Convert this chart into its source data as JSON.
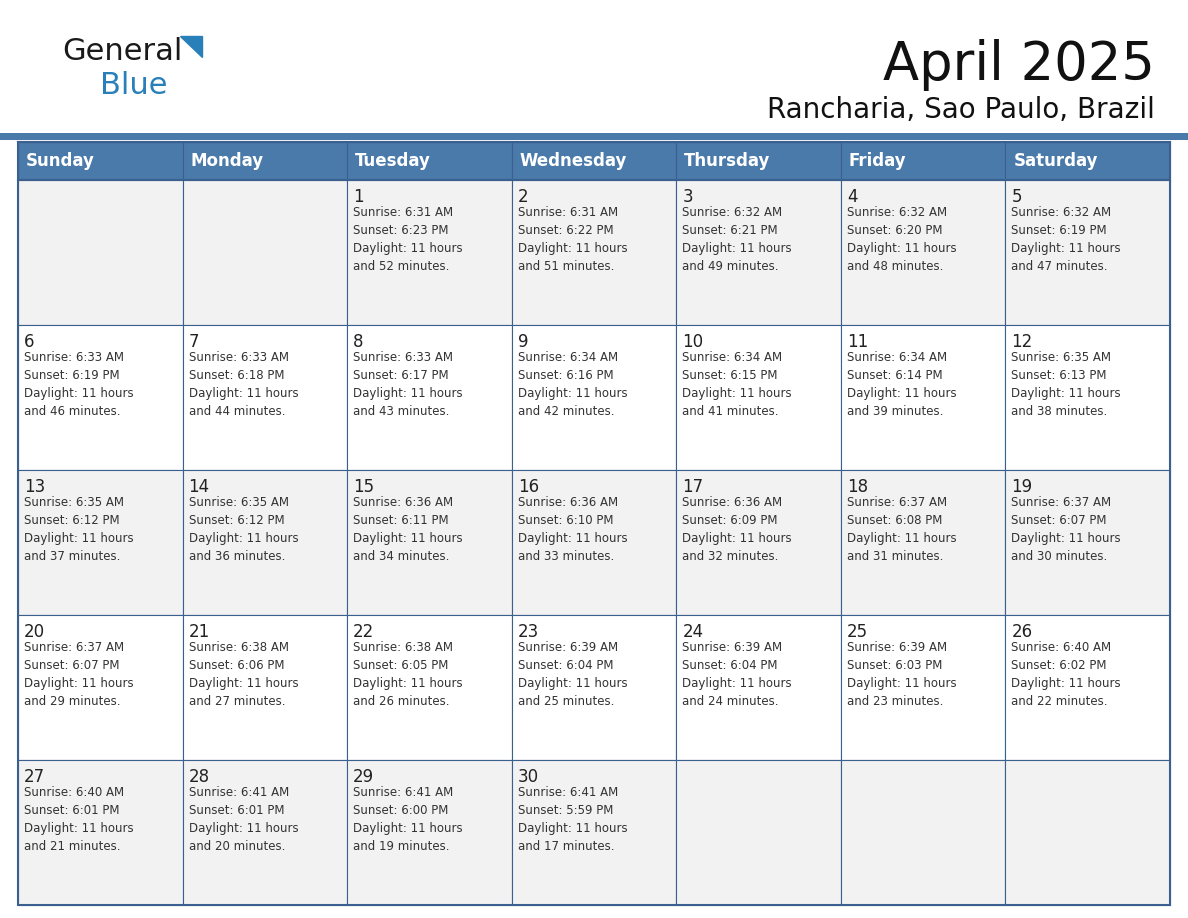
{
  "title": "April 2025",
  "subtitle": "Rancharia, Sao Paulo, Brazil",
  "header_bg": "#4a7aaa",
  "header_text_color": "#ffffff",
  "border_color": "#3a6090",
  "row_bg_light": "#f2f2f2",
  "row_bg_white": "#ffffff",
  "text_color": "#222222",
  "info_color": "#333333",
  "days_of_week": [
    "Sunday",
    "Monday",
    "Tuesday",
    "Wednesday",
    "Thursday",
    "Friday",
    "Saturday"
  ],
  "weeks": [
    [
      {
        "day": "",
        "info": ""
      },
      {
        "day": "",
        "info": ""
      },
      {
        "day": "1",
        "info": "Sunrise: 6:31 AM\nSunset: 6:23 PM\nDaylight: 11 hours\nand 52 minutes."
      },
      {
        "day": "2",
        "info": "Sunrise: 6:31 AM\nSunset: 6:22 PM\nDaylight: 11 hours\nand 51 minutes."
      },
      {
        "day": "3",
        "info": "Sunrise: 6:32 AM\nSunset: 6:21 PM\nDaylight: 11 hours\nand 49 minutes."
      },
      {
        "day": "4",
        "info": "Sunrise: 6:32 AM\nSunset: 6:20 PM\nDaylight: 11 hours\nand 48 minutes."
      },
      {
        "day": "5",
        "info": "Sunrise: 6:32 AM\nSunset: 6:19 PM\nDaylight: 11 hours\nand 47 minutes."
      }
    ],
    [
      {
        "day": "6",
        "info": "Sunrise: 6:33 AM\nSunset: 6:19 PM\nDaylight: 11 hours\nand 46 minutes."
      },
      {
        "day": "7",
        "info": "Sunrise: 6:33 AM\nSunset: 6:18 PM\nDaylight: 11 hours\nand 44 minutes."
      },
      {
        "day": "8",
        "info": "Sunrise: 6:33 AM\nSunset: 6:17 PM\nDaylight: 11 hours\nand 43 minutes."
      },
      {
        "day": "9",
        "info": "Sunrise: 6:34 AM\nSunset: 6:16 PM\nDaylight: 11 hours\nand 42 minutes."
      },
      {
        "day": "10",
        "info": "Sunrise: 6:34 AM\nSunset: 6:15 PM\nDaylight: 11 hours\nand 41 minutes."
      },
      {
        "day": "11",
        "info": "Sunrise: 6:34 AM\nSunset: 6:14 PM\nDaylight: 11 hours\nand 39 minutes."
      },
      {
        "day": "12",
        "info": "Sunrise: 6:35 AM\nSunset: 6:13 PM\nDaylight: 11 hours\nand 38 minutes."
      }
    ],
    [
      {
        "day": "13",
        "info": "Sunrise: 6:35 AM\nSunset: 6:12 PM\nDaylight: 11 hours\nand 37 minutes."
      },
      {
        "day": "14",
        "info": "Sunrise: 6:35 AM\nSunset: 6:12 PM\nDaylight: 11 hours\nand 36 minutes."
      },
      {
        "day": "15",
        "info": "Sunrise: 6:36 AM\nSunset: 6:11 PM\nDaylight: 11 hours\nand 34 minutes."
      },
      {
        "day": "16",
        "info": "Sunrise: 6:36 AM\nSunset: 6:10 PM\nDaylight: 11 hours\nand 33 minutes."
      },
      {
        "day": "17",
        "info": "Sunrise: 6:36 AM\nSunset: 6:09 PM\nDaylight: 11 hours\nand 32 minutes."
      },
      {
        "day": "18",
        "info": "Sunrise: 6:37 AM\nSunset: 6:08 PM\nDaylight: 11 hours\nand 31 minutes."
      },
      {
        "day": "19",
        "info": "Sunrise: 6:37 AM\nSunset: 6:07 PM\nDaylight: 11 hours\nand 30 minutes."
      }
    ],
    [
      {
        "day": "20",
        "info": "Sunrise: 6:37 AM\nSunset: 6:07 PM\nDaylight: 11 hours\nand 29 minutes."
      },
      {
        "day": "21",
        "info": "Sunrise: 6:38 AM\nSunset: 6:06 PM\nDaylight: 11 hours\nand 27 minutes."
      },
      {
        "day": "22",
        "info": "Sunrise: 6:38 AM\nSunset: 6:05 PM\nDaylight: 11 hours\nand 26 minutes."
      },
      {
        "day": "23",
        "info": "Sunrise: 6:39 AM\nSunset: 6:04 PM\nDaylight: 11 hours\nand 25 minutes."
      },
      {
        "day": "24",
        "info": "Sunrise: 6:39 AM\nSunset: 6:04 PM\nDaylight: 11 hours\nand 24 minutes."
      },
      {
        "day": "25",
        "info": "Sunrise: 6:39 AM\nSunset: 6:03 PM\nDaylight: 11 hours\nand 23 minutes."
      },
      {
        "day": "26",
        "info": "Sunrise: 6:40 AM\nSunset: 6:02 PM\nDaylight: 11 hours\nand 22 minutes."
      }
    ],
    [
      {
        "day": "27",
        "info": "Sunrise: 6:40 AM\nSunset: 6:01 PM\nDaylight: 11 hours\nand 21 minutes."
      },
      {
        "day": "28",
        "info": "Sunrise: 6:41 AM\nSunset: 6:01 PM\nDaylight: 11 hours\nand 20 minutes."
      },
      {
        "day": "29",
        "info": "Sunrise: 6:41 AM\nSunset: 6:00 PM\nDaylight: 11 hours\nand 19 minutes."
      },
      {
        "day": "30",
        "info": "Sunrise: 6:41 AM\nSunset: 5:59 PM\nDaylight: 11 hours\nand 17 minutes."
      },
      {
        "day": "",
        "info": ""
      },
      {
        "day": "",
        "info": ""
      },
      {
        "day": "",
        "info": ""
      }
    ]
  ],
  "logo_color_general": "#1a1a1a",
  "logo_color_blue": "#2980b9",
  "logo_triangle_color": "#2980b9",
  "title_fontsize": 38,
  "subtitle_fontsize": 20,
  "header_fontsize": 12,
  "day_num_fontsize": 12,
  "info_fontsize": 8.5
}
